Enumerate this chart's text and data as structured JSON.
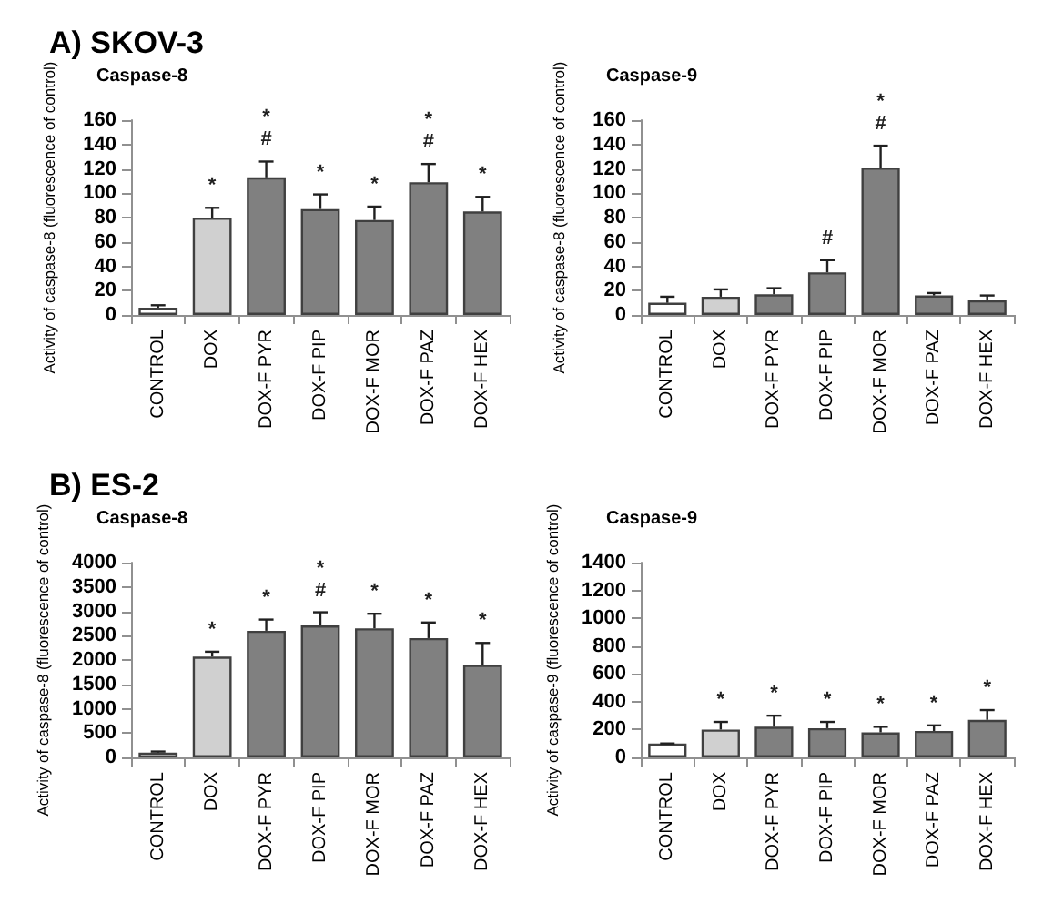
{
  "chart_data": [
    {
      "type": "bar",
      "title": "A) SKOV-3",
      "subtitle": "Caspase-8",
      "ylabel": "Activity of caspase-8 (fluorescence of control)",
      "categories": [
        "CONTROL",
        "DOX",
        "DOX-F PYR",
        "DOX-F PIP",
        "DOX-F MOR",
        "DOX-F PAZ",
        "DOX-F HEX"
      ],
      "values": [
        6,
        80,
        113,
        87,
        78,
        109,
        85
      ],
      "errors": [
        [
          6,
          8
        ],
        [
          80,
          88
        ],
        [
          113,
          126
        ],
        [
          87,
          99
        ],
        [
          78,
          89
        ],
        [
          109,
          124
        ],
        [
          85,
          97
        ]
      ],
      "colors": [
        "#ffffff",
        "#d0d0d0",
        "#808080",
        "#808080",
        "#808080",
        "#808080",
        "#808080"
      ],
      "ylim": [
        0,
        160
      ],
      "yticks": [
        0,
        20,
        40,
        60,
        80,
        100,
        120,
        140,
        160
      ],
      "value_labels": [
        null,
        "*",
        "*\n#",
        "*",
        "*",
        "*\n#",
        "*"
      ]
    },
    {
      "type": "bar",
      "title": "Caspase-9",
      "ylabel": "Activity of caspase-8 (fluorescence of control)",
      "categories": [
        "CONTROL",
        "DOX",
        "DOX-F PYR",
        "DOX-F PIP",
        "DOX-F MOR",
        "DOX-F PAZ",
        "DOX-F HEX"
      ],
      "values": [
        10,
        15,
        17,
        35,
        121,
        16,
        12
      ],
      "errors": [
        [
          10,
          15
        ],
        [
          15,
          21
        ],
        [
          17,
          22
        ],
        [
          35,
          45
        ],
        [
          121,
          139
        ],
        [
          16,
          18
        ],
        [
          12,
          16
        ]
      ],
      "colors": [
        "#ffffff",
        "#d0d0d0",
        "#808080",
        "#808080",
        "#808080",
        "#808080",
        "#808080"
      ],
      "ylim": [
        0,
        160
      ],
      "yticks": [
        0,
        20,
        40,
        60,
        80,
        100,
        120,
        140,
        160
      ],
      "value_labels": [
        null,
        null,
        null,
        "#",
        "*\n#",
        null,
        null
      ]
    },
    {
      "type": "bar",
      "title": "B) ES-2",
      "subtitle": "Caspase-8",
      "ylabel": "Activity of caspase-8 (fluorescence of control)",
      "categories": [
        "CONTROL",
        "DOX",
        "DOX-F PYR",
        "DOX-F PIP",
        "DOX-F MOR",
        "DOX-F PAZ",
        "DOX-F HEX"
      ],
      "values": [
        100,
        2070,
        2600,
        2710,
        2650,
        2450,
        1900
      ],
      "errors": [
        [
          100,
          120
        ],
        [
          2070,
          2170
        ],
        [
          2600,
          2830
        ],
        [
          2710,
          2980
        ],
        [
          2650,
          2950
        ],
        [
          2450,
          2770
        ],
        [
          1900,
          2350
        ]
      ],
      "colors": [
        "#ffffff",
        "#d0d0d0",
        "#808080",
        "#808080",
        "#808080",
        "#808080",
        "#808080"
      ],
      "ylim": [
        0,
        4000
      ],
      "yticks": [
        0,
        500,
        1000,
        1500,
        2000,
        2500,
        3000,
        3500,
        4000
      ],
      "value_labels": [
        null,
        "*",
        "*",
        "*\n#",
        "*",
        "*",
        "*"
      ]
    },
    {
      "type": "bar",
      "title": "Caspase-9",
      "ylabel": "Activity of caspase-9 (fluorescence of control)",
      "categories": [
        "CONTROL",
        "DOX",
        "DOX-F PYR",
        "DOX-F PIP",
        "DOX-F MOR",
        "DOX-F PAZ",
        "DOX-F HEX"
      ],
      "values": [
        100,
        200,
        220,
        210,
        180,
        190,
        270
      ],
      "errors": [
        [
          100,
          100
        ],
        [
          200,
          255
        ],
        [
          220,
          300
        ],
        [
          210,
          255
        ],
        [
          180,
          220
        ],
        [
          190,
          230
        ],
        [
          270,
          340
        ]
      ],
      "colors": [
        "#ffffff",
        "#d0d0d0",
        "#808080",
        "#808080",
        "#808080",
        "#808080",
        "#808080"
      ],
      "ylim": [
        0,
        1400
      ],
      "yticks": [
        0,
        200,
        400,
        600,
        800,
        1000,
        1200,
        1400
      ],
      "value_labels": [
        null,
        "*",
        "*",
        "*",
        "*",
        "*",
        "*"
      ]
    }
  ]
}
